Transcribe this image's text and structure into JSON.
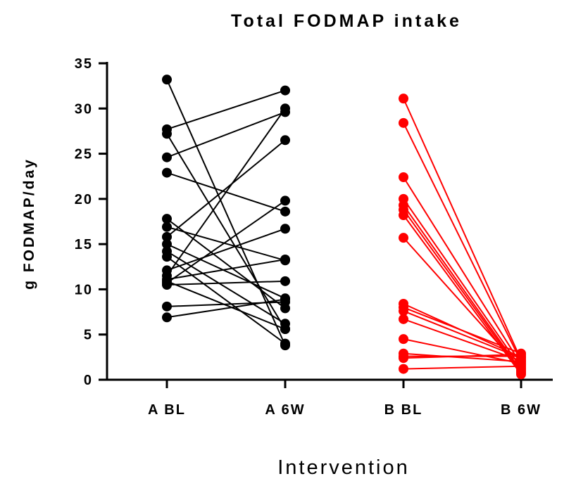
{
  "chart_data": {
    "type": "scatter",
    "title": "Total FODMAP intake",
    "xlabel": "Intervention",
    "ylabel": "g FODMAP/day",
    "categories": [
      "A BL",
      "A 6W",
      "B BL",
      "B 6W"
    ],
    "ylim": [
      0,
      35
    ],
    "yticks": [
      0,
      5,
      10,
      15,
      20,
      25,
      30,
      35
    ],
    "grid": false,
    "series": [
      {
        "color": "#000000",
        "from_category": "A BL",
        "to_category": "A 6W",
        "pairs": [
          [
            33.2,
            3.8
          ],
          [
            27.7,
            32.0
          ],
          [
            27.2,
            5.6
          ],
          [
            24.6,
            29.6
          ],
          [
            22.9,
            18.6
          ],
          [
            17.8,
            7.9
          ],
          [
            16.9,
            13.2
          ],
          [
            15.8,
            26.5
          ],
          [
            15.0,
            9.0
          ],
          [
            14.2,
            6.2
          ],
          [
            13.6,
            4.0
          ],
          [
            12.1,
            16.7
          ],
          [
            11.5,
            30.0
          ],
          [
            11.1,
            13.3
          ],
          [
            10.9,
            5.6
          ],
          [
            10.7,
            19.8
          ],
          [
            10.5,
            10.9
          ],
          [
            8.1,
            8.6
          ],
          [
            6.9,
            8.9
          ]
        ]
      },
      {
        "color": "#ff0000",
        "from_category": "B BL",
        "to_category": "B 6W",
        "pairs": [
          [
            31.1,
            2.2
          ],
          [
            28.4,
            2.0
          ],
          [
            22.4,
            1.7
          ],
          [
            20.0,
            1.3
          ],
          [
            19.3,
            1.0
          ],
          [
            18.8,
            0.8
          ],
          [
            18.2,
            0.6
          ],
          [
            15.7,
            1.2
          ],
          [
            8.4,
            2.5
          ],
          [
            8.0,
            2.9
          ],
          [
            7.6,
            2.4
          ],
          [
            6.7,
            2.1
          ],
          [
            4.5,
            1.8
          ],
          [
            2.9,
            2.0
          ],
          [
            2.6,
            2.6
          ],
          [
            2.4,
            2.8
          ],
          [
            1.2,
            1.5
          ]
        ]
      }
    ]
  }
}
